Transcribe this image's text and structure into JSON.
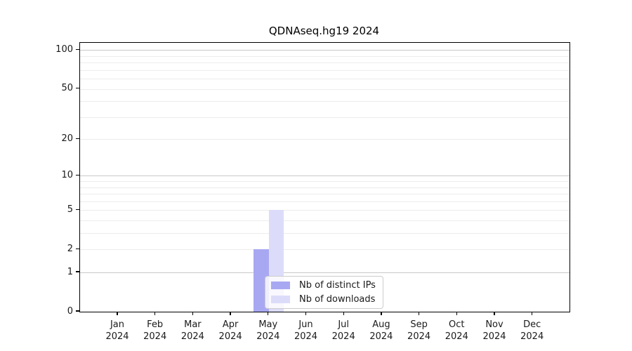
{
  "chart_data": {
    "type": "bar",
    "title": "QDNAseq.hg19 2024",
    "categories": [
      "Jan 2024",
      "Feb 2024",
      "Mar 2024",
      "Apr 2024",
      "May 2024",
      "Jun 2024",
      "Jul 2024",
      "Aug 2024",
      "Sep 2024",
      "Oct 2024",
      "Nov 2024",
      "Dec 2024"
    ],
    "series": [
      {
        "name": "Nb of distinct IPs",
        "color": "#a8a8f2",
        "values": [
          0,
          0,
          0,
          0,
          2,
          0,
          0,
          0,
          0,
          0,
          0,
          0
        ]
      },
      {
        "name": "Nb of downloads",
        "color": "#dcdcfa",
        "values": [
          0,
          0,
          0,
          0,
          5,
          0,
          0,
          0,
          0,
          0,
          0,
          0
        ]
      }
    ],
    "xlabel": "",
    "ylabel": "",
    "yscale": "log1p",
    "ylim": [
      0,
      114
    ],
    "yticks": [
      0,
      1,
      2,
      5,
      10,
      20,
      50,
      100
    ],
    "grid": {
      "major": [
        1,
        10,
        100
      ],
      "minor": [
        2,
        3,
        4,
        5,
        6,
        7,
        8,
        9,
        20,
        30,
        40,
        50,
        60,
        70,
        80,
        90
      ]
    },
    "legend": {
      "position": "lower center"
    }
  },
  "colors": {
    "background": "#ffffff",
    "axis": "#000000",
    "text": "#1a1a1a",
    "grid_major": "#c9c9c9",
    "grid_minor": "#ececec",
    "legend_border": "#cccccc"
  }
}
